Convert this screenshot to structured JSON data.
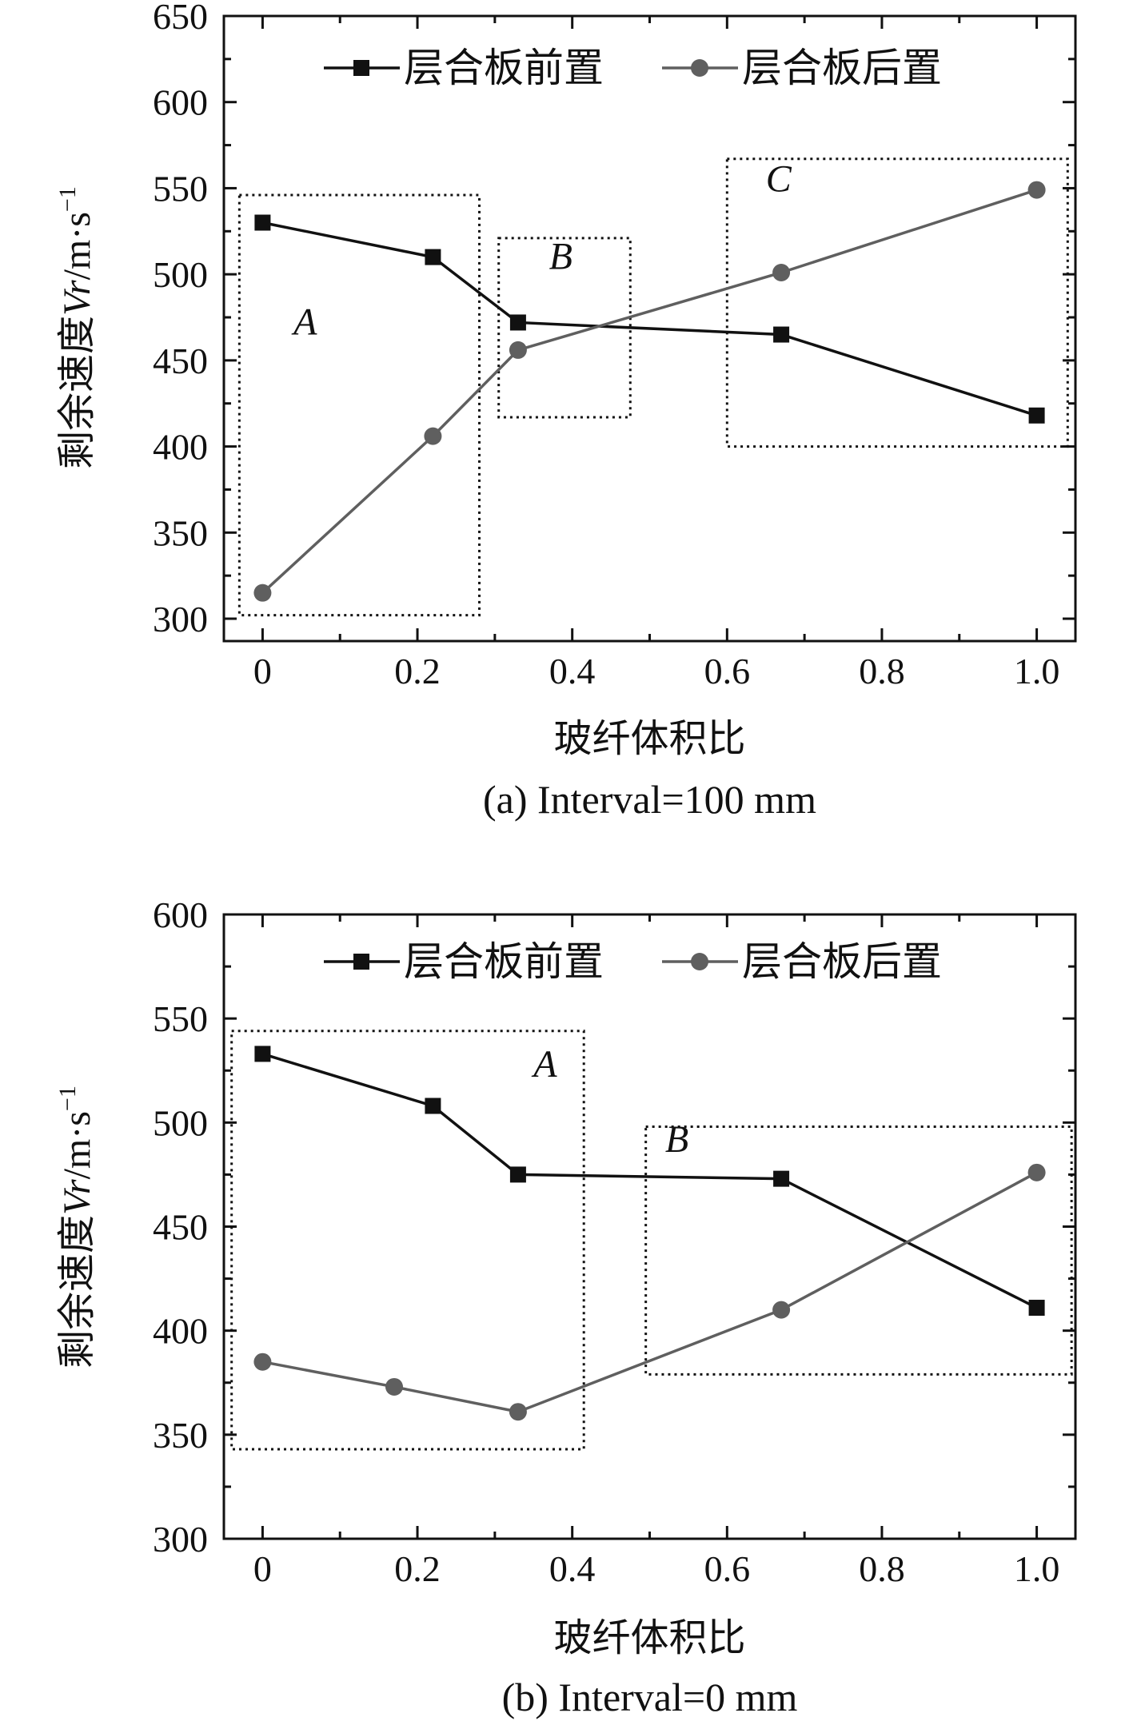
{
  "chart_data": [
    {
      "type": "line",
      "caption": "(a) Interval=100 mm",
      "xlabel": "玻纤体积比",
      "ylabel": "剩余速度Vr/m·s⁻¹",
      "ylabel_parts": {
        "prefix": "剩余速度",
        "var": "Vr",
        "unit": "/m·s",
        "sup": "−1"
      },
      "xlim": [
        -0.05,
        1.05
      ],
      "ylim": [
        287,
        650
      ],
      "x_ticks": [
        0,
        0.2,
        0.4,
        0.6,
        0.8,
        1.0
      ],
      "x_tick_labels": [
        "0",
        "0.2",
        "0.4",
        "0.6",
        "0.8",
        "1.0"
      ],
      "y_ticks": [
        300,
        350,
        400,
        450,
        500,
        550,
        600,
        650
      ],
      "y_tick_labels": [
        "300",
        "350",
        "400",
        "450",
        "500",
        "550",
        "600",
        "650"
      ],
      "grid": false,
      "legend_position": "top",
      "series": [
        {
          "name": "层合板前置",
          "marker": "square",
          "color": "#111111",
          "x": [
            0,
            0.22,
            0.33,
            0.67,
            1.0
          ],
          "y": [
            530,
            510,
            472,
            465,
            418
          ]
        },
        {
          "name": "层合板后置",
          "marker": "circle",
          "color": "#5f5f5f",
          "x": [
            0,
            0.22,
            0.33,
            0.67,
            1.0
          ],
          "y": [
            315,
            406,
            456,
            501,
            549
          ]
        }
      ],
      "regions": [
        {
          "label": "A",
          "x": [
            -0.03,
            0.28
          ],
          "y": [
            302,
            546
          ],
          "label_at": [
            0.04,
            465
          ]
        },
        {
          "label": "B",
          "x": [
            0.305,
            0.475
          ],
          "y": [
            417,
            521
          ],
          "label_at": [
            0.37,
            503
          ]
        },
        {
          "label": "C",
          "x": [
            0.6,
            1.04
          ],
          "y": [
            400,
            567
          ],
          "label_at": [
            0.65,
            548
          ]
        }
      ]
    },
    {
      "type": "line",
      "caption": "(b) Interval=0 mm",
      "xlabel": "玻纤体积比",
      "ylabel": "剩余速度Vr/m·s⁻¹",
      "ylabel_parts": {
        "prefix": "剩余速度",
        "var": "Vr",
        "unit": "/m·s",
        "sup": "−1"
      },
      "xlim": [
        -0.05,
        1.05
      ],
      "ylim": [
        300,
        600
      ],
      "x_ticks": [
        0,
        0.2,
        0.4,
        0.6,
        0.8,
        1.0
      ],
      "x_tick_labels": [
        "0",
        "0.2",
        "0.4",
        "0.6",
        "0.8",
        "1.0"
      ],
      "y_ticks": [
        300,
        350,
        400,
        450,
        500,
        550,
        600
      ],
      "y_tick_labels": [
        "300",
        "350",
        "400",
        "450",
        "500",
        "550",
        "600"
      ],
      "grid": false,
      "legend_position": "top",
      "series": [
        {
          "name": "层合板前置",
          "marker": "square",
          "color": "#111111",
          "x": [
            0,
            0.22,
            0.33,
            0.67,
            1.0
          ],
          "y": [
            533,
            508,
            475,
            473,
            411
          ]
        },
        {
          "name": "层合板后置",
          "marker": "circle",
          "color": "#5f5f5f",
          "x": [
            0,
            0.17,
            0.33,
            0.67,
            1.0
          ],
          "y": [
            385,
            373,
            361,
            410,
            476
          ]
        }
      ],
      "regions": [
        {
          "label": "A",
          "x": [
            -0.04,
            0.415
          ],
          "y": [
            343,
            544
          ],
          "label_at": [
            0.35,
            522
          ]
        },
        {
          "label": "B",
          "x": [
            0.495,
            1.045
          ],
          "y": [
            379,
            498
          ],
          "label_at": [
            0.52,
            486
          ]
        }
      ]
    }
  ]
}
